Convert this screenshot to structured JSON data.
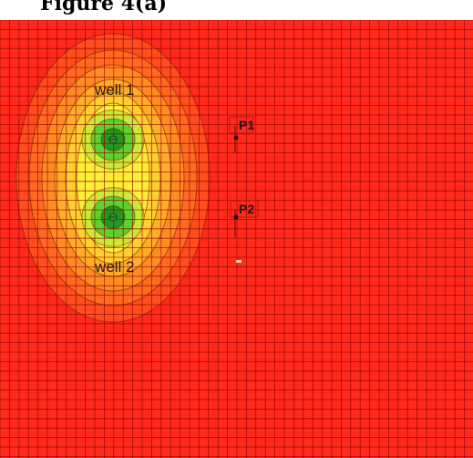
{
  "figure": {
    "caption": "Figure 4(a)"
  },
  "wells": [
    {
      "id": "well-1",
      "label": "well 1"
    },
    {
      "id": "well-2",
      "label": "well 2"
    }
  ],
  "observation_points": [
    {
      "id": "P1",
      "label": "P1"
    },
    {
      "id": "P2",
      "label": "P2"
    }
  ],
  "colors": {
    "background": "#ff2a1c",
    "grid": "#8a0000",
    "contour_line": "#6a1800",
    "outer_band_1": "#ff4d1e",
    "outer_band_2": "#ff6a20",
    "orange": "#ff8c22",
    "light_orange": "#ffae2a",
    "yellow_orange": "#ffd030",
    "yellow": "#ffee38",
    "yellow_green": "#c8ea36",
    "green": "#5cd22e",
    "dark_green": "#1e9a1e"
  }
}
